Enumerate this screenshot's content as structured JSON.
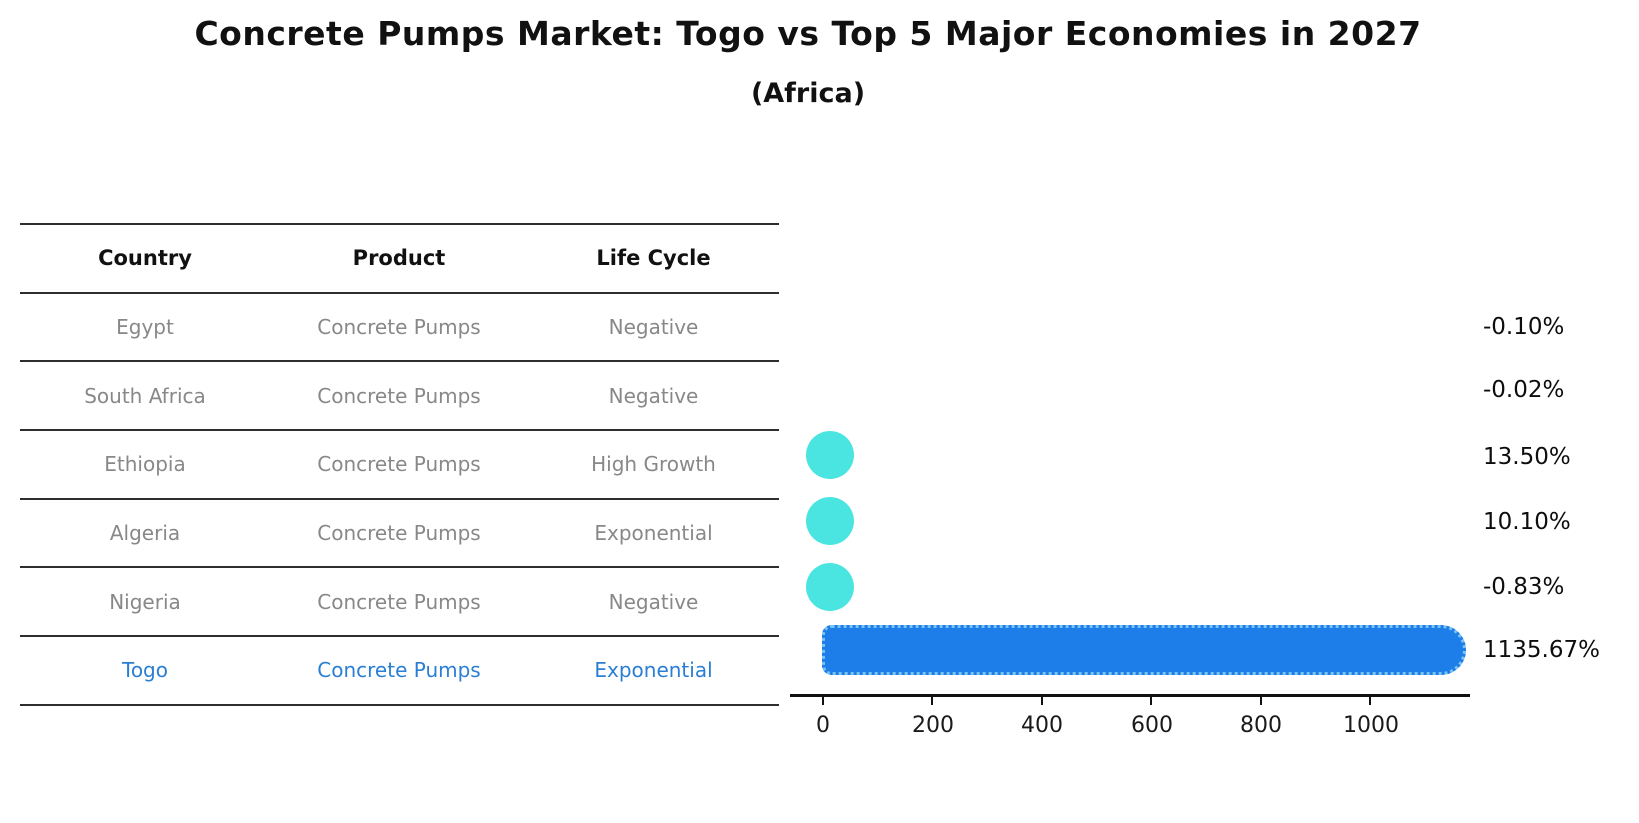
{
  "title": "Concrete Pumps Market: Togo vs Top 5 Major Economies in 2027",
  "subtitle": "(Africa)",
  "table": {
    "headers": [
      "Country",
      "Product",
      "Life Cycle"
    ],
    "rows": [
      {
        "country": "Egypt",
        "product": "Concrete Pumps",
        "life_cycle": "Negative",
        "value_label": "-0.10%",
        "highlight": false
      },
      {
        "country": "South Africa",
        "product": "Concrete Pumps",
        "life_cycle": "Negative",
        "value_label": "-0.02%",
        "highlight": false
      },
      {
        "country": "Ethiopia",
        "product": "Concrete Pumps",
        "life_cycle": "High Growth",
        "value_label": "13.50%",
        "highlight": false
      },
      {
        "country": "Algeria",
        "product": "Concrete Pumps",
        "life_cycle": "Exponential",
        "value_label": "10.10%",
        "highlight": false
      },
      {
        "country": "Nigeria",
        "product": "Concrete Pumps",
        "life_cycle": "Negative",
        "value_label": "-0.83%",
        "highlight": false
      },
      {
        "country": "Togo",
        "product": "Concrete Pumps",
        "life_cycle": "Exponential",
        "value_label": "1135.67%",
        "highlight": true
      }
    ]
  },
  "chart_data": {
    "type": "bar",
    "orientation": "horizontal",
    "title": "Concrete Pumps Market: Togo vs Top 5 Major Economies in 2027",
    "subtitle": "(Africa)",
    "categories": [
      "Egypt",
      "South Africa",
      "Ethiopia",
      "Algeria",
      "Nigeria",
      "Togo"
    ],
    "values": [
      -0.1,
      -0.02,
      13.5,
      10.1,
      -0.83,
      1135.67
    ],
    "value_labels": [
      "-0.10%",
      "-0.02%",
      "13.50%",
      "10.10%",
      "-0.83%",
      "1135.67%"
    ],
    "units": "percent",
    "x_ticks": [
      0,
      200,
      400,
      600,
      800,
      1000
    ],
    "xlim": [
      0,
      1180
    ],
    "grid": false,
    "legend": false,
    "markers_visible_for": [
      "Ethiopia",
      "Algeria",
      "Nigeria",
      "Togo"
    ],
    "highlight_category": "Togo"
  },
  "colors": {
    "bar_fill": "#1e7ee9",
    "bar_edge": "#79c3f2",
    "marker_fill": "#4be5e1",
    "highlight_text": "#2a7fd4",
    "muted_text": "#888888",
    "text": "#111111"
  }
}
